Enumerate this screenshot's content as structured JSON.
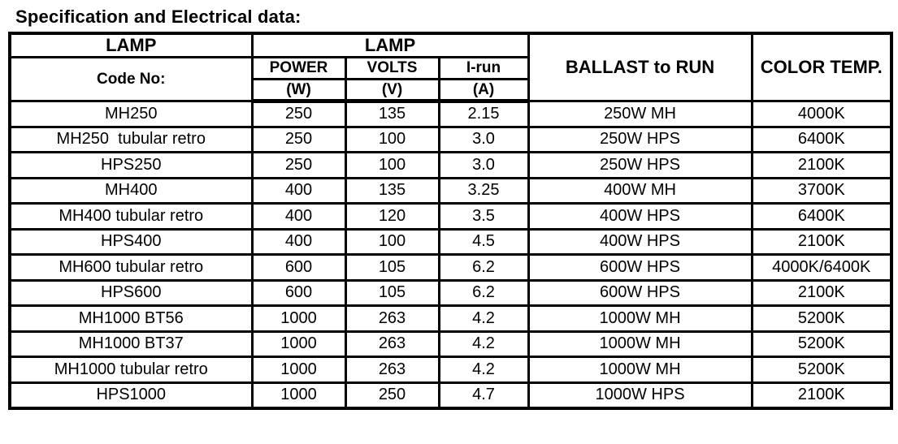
{
  "title": "Specification and Electrical data:",
  "colors": {
    "border": "#000000",
    "background": "#ffffff",
    "text": "#000000"
  },
  "table": {
    "header": {
      "lamp_left": "LAMP",
      "lamp_right": "LAMP",
      "code_no": "Code No:",
      "power": "POWER",
      "power_unit": "(W)",
      "volts": "VOLTS",
      "volts_unit": "(V)",
      "i_run": "I-run",
      "i_run_unit": "(A)",
      "ballast": "BALLAST to RUN",
      "color_temp": "COLOR TEMP."
    },
    "rows": [
      {
        "code": "MH250",
        "power": "250",
        "volts": "135",
        "i_run": "2.15",
        "ballast": "250W MH",
        "color_temp": "4000K"
      },
      {
        "code": "MH250  tubular retro",
        "power": "250",
        "volts": "100",
        "i_run": "3.0",
        "ballast": "250W HPS",
        "color_temp": "6400K"
      },
      {
        "code": "HPS250",
        "power": "250",
        "volts": "100",
        "i_run": "3.0",
        "ballast": "250W HPS",
        "color_temp": "2100K"
      },
      {
        "code": "MH400",
        "power": "400",
        "volts": "135",
        "i_run": "3.25",
        "ballast": "400W MH",
        "color_temp": "3700K"
      },
      {
        "code": "MH400 tubular retro",
        "power": "400",
        "volts": "120",
        "i_run": "3.5",
        "ballast": "400W HPS",
        "color_temp": "6400K"
      },
      {
        "code": "HPS400",
        "power": "400",
        "volts": "100",
        "i_run": "4.5",
        "ballast": "400W HPS",
        "color_temp": "2100K"
      },
      {
        "code": "MH600 tubular retro",
        "power": "600",
        "volts": "105",
        "i_run": "6.2",
        "ballast": "600W HPS",
        "color_temp": "4000K/6400K"
      },
      {
        "code": "HPS600",
        "power": "600",
        "volts": "105",
        "i_run": "6.2",
        "ballast": "600W HPS",
        "color_temp": "2100K"
      },
      {
        "code": "MH1000 BT56",
        "power": "1000",
        "volts": "263",
        "i_run": "4.2",
        "ballast": "1000W MH",
        "color_temp": "5200K"
      },
      {
        "code": "MH1000 BT37",
        "power": "1000",
        "volts": "263",
        "i_run": "4.2",
        "ballast": "1000W MH",
        "color_temp": "5200K"
      },
      {
        "code": "MH1000 tubular retro",
        "power": "1000",
        "volts": "263",
        "i_run": "4.2",
        "ballast": "1000W MH",
        "color_temp": "5200K"
      },
      {
        "code": "HPS1000",
        "power": "1000",
        "volts": "250",
        "i_run": "4.7",
        "ballast": "1000W HPS",
        "color_temp": "2100K"
      }
    ]
  }
}
